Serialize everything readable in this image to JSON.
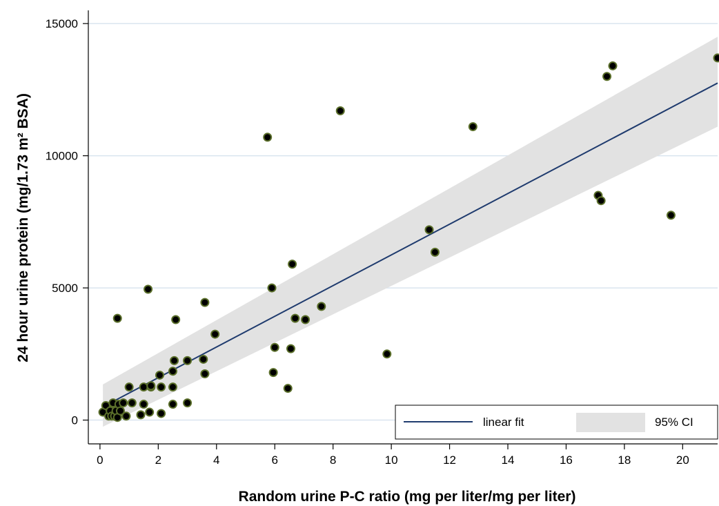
{
  "chart_data": {
    "type": "scatter",
    "xlabel": "Random urine P-C ratio (mg per liter/mg per liter)",
    "ylabel": "24 hour urine protein (mg/1.73 m² BSA)",
    "xlim": [
      -0.4,
      21.2
    ],
    "ylim": [
      -900,
      15500
    ],
    "x_ticks": [
      0,
      2,
      4,
      6,
      8,
      10,
      12,
      14,
      16,
      18,
      20
    ],
    "y_ticks": [
      0,
      5000,
      10000,
      15000
    ],
    "grid": "horizontal",
    "legend_position": "bottom-right",
    "legend": [
      {
        "label": "linear fit",
        "kind": "line"
      },
      {
        "label": "95% CI",
        "kind": "band"
      }
    ],
    "series": [
      {
        "kind": "points",
        "x": [
          0.1,
          0.2,
          0.3,
          0.35,
          0.4,
          0.45,
          0.5,
          0.55,
          0.6,
          0.65,
          0.7,
          0.8,
          0.9,
          1.0,
          1.1,
          1.4,
          1.5,
          1.5,
          1.7,
          1.75,
          1.75,
          2.05,
          2.1,
          2.1,
          2.5,
          2.5,
          2.5,
          2.55,
          0.6,
          1.65,
          2.6,
          3.0,
          3.0,
          3.55,
          3.6,
          3.6,
          3.95,
          5.75,
          5.9,
          5.95,
          6.0,
          6.45,
          6.55,
          6.6,
          6.7,
          7.05,
          7.6,
          8.25,
          9.85,
          11.3,
          11.5,
          12.8,
          17.1,
          17.2,
          17.4,
          17.6,
          19.6,
          21.2
        ],
        "y": [
          300,
          550,
          150,
          350,
          150,
          650,
          150,
          350,
          100,
          600,
          350,
          650,
          150,
          1250,
          650,
          200,
          600,
          1250,
          300,
          1250,
          1300,
          1700,
          250,
          1250,
          1850,
          1250,
          600,
          2250,
          3850,
          4950,
          3800,
          2250,
          650,
          2300,
          1750,
          4450,
          3250,
          10700,
          5000,
          1800,
          2750,
          1200,
          2700,
          5900,
          3850,
          3800,
          4300,
          11700,
          2500,
          7200,
          6350,
          11100,
          8500,
          8300,
          13000,
          13400,
          7750,
          13700
        ]
      },
      {
        "kind": "fit",
        "name": "linear fit",
        "x": [
          0.1,
          21.2
        ],
        "y": [
          500,
          12750
        ]
      },
      {
        "kind": "ci-band",
        "name": "95% CI",
        "x": [
          0.1,
          21.2
        ],
        "upper": [
          1350,
          14500
        ],
        "lower": [
          -250,
          11100
        ]
      }
    ]
  }
}
